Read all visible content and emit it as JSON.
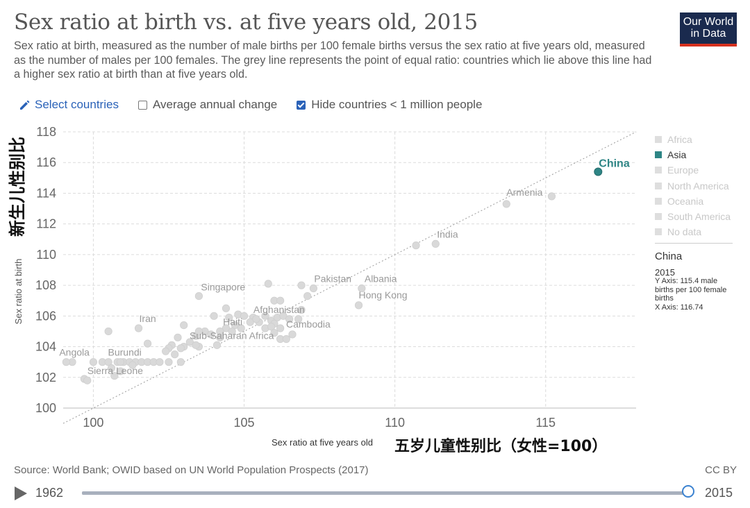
{
  "header": {
    "title": "Sex ratio at birth vs. at five years old, 2015",
    "subtitle": "Sex ratio at birth, measured as the number of male births per 100 female births versus the sex ratio at five years old, measured as the number of males per 100 females. The grey line represents the point of equal ratio: countries which lie above this line had a higher sex ratio at birth than at five years old.",
    "logo_line1": "Our World",
    "logo_line2": "in Data"
  },
  "controls": {
    "select_countries": "Select countries",
    "average_change": "Average annual change",
    "hide_small": "Hide countries < 1 million people",
    "average_change_checked": false,
    "hide_small_checked": true
  },
  "annotations": {
    "chinese_y": "新生儿性别比",
    "chinese_x": "五岁儿童性别比（女性=100）"
  },
  "legend": {
    "items": [
      "Africa",
      "Asia",
      "Europe",
      "North America",
      "Oceania",
      "South America",
      "No data"
    ],
    "active": "Asia"
  },
  "tooltip": {
    "country": "China",
    "year": "2015",
    "y_line": "Y Axis: 115.4 male births per 100 female births",
    "x_line": "X Axis: 116.74"
  },
  "footer": {
    "source": "Source: World Bank; OWID based on UN World Population Prospects (2017)",
    "license": "CC BY"
  },
  "timeline": {
    "start": "1962",
    "end": "2015"
  },
  "colors": {
    "highlight": "#2e8585",
    "point": "#d9d9d9",
    "link": "#2a62b8"
  },
  "chart_data": {
    "type": "scatter",
    "title": "Sex ratio at birth vs. at five years old, 2015",
    "xlabel": "Sex ratio at five years old",
    "ylabel": "Sex ratio at birth",
    "xlim": [
      99,
      118
    ],
    "ylim": [
      100,
      118
    ],
    "xticks": [
      100,
      105,
      110,
      115
    ],
    "yticks": [
      100,
      102,
      104,
      106,
      108,
      110,
      112,
      114,
      116,
      118
    ],
    "grid": true,
    "equal_line": true,
    "highlight": {
      "name": "China",
      "x": 116.74,
      "y": 115.4
    },
    "labeled_points": [
      {
        "name": "Armenia",
        "x": 113.7,
        "y": 113.3
      },
      {
        "name": "India",
        "x": 111.35,
        "y": 110.7
      },
      {
        "name": "Pakistan",
        "x": 107.3,
        "y": 107.8
      },
      {
        "name": "Albania",
        "x": 108.9,
        "y": 107.8
      },
      {
        "name": "Singapore",
        "x": 103.5,
        "y": 107.3
      },
      {
        "name": "Hong Kong",
        "x": 108.8,
        "y": 106.7
      },
      {
        "name": "Afghanistan",
        "x": 105.4,
        "y": 105.8
      },
      {
        "name": "Iran",
        "x": 101.5,
        "y": 105.2
      },
      {
        "name": "Haiti",
        "x": 104.6,
        "y": 105.0
      },
      {
        "name": "Cambodia",
        "x": 106.6,
        "y": 104.8
      },
      {
        "name": "Sub-Saharan Africa",
        "x": 103.4,
        "y": 104.1
      },
      {
        "name": "Burundi",
        "x": 100.9,
        "y": 103.0
      },
      {
        "name": "Angola",
        "x": 99.1,
        "y": 103.0
      },
      {
        "name": "Sierra Leone",
        "x": 99.8,
        "y": 101.8
      }
    ],
    "points": [
      [
        115.2,
        113.8
      ],
      [
        110.7,
        110.6
      ],
      [
        106.9,
        108.0
      ],
      [
        105.8,
        108.1
      ],
      [
        107.1,
        107.3
      ],
      [
        106.0,
        107.0
      ],
      [
        106.2,
        107.0
      ],
      [
        106.9,
        106.4
      ],
      [
        104.4,
        106.5
      ],
      [
        104.0,
        106.0
      ],
      [
        104.5,
        105.9
      ],
      [
        104.8,
        106.1
      ],
      [
        105.0,
        106.0
      ],
      [
        105.3,
        105.9
      ],
      [
        105.5,
        105.6
      ],
      [
        105.7,
        106.0
      ],
      [
        105.9,
        105.7
      ],
      [
        106.1,
        105.9
      ],
      [
        106.3,
        106.0
      ],
      [
        106.5,
        105.8
      ],
      [
        106.8,
        105.8
      ],
      [
        106.0,
        105.5
      ],
      [
        105.7,
        105.2
      ],
      [
        105.9,
        105.3
      ],
      [
        106.2,
        105.2
      ],
      [
        106.0,
        104.9
      ],
      [
        104.7,
        105.4
      ],
      [
        104.9,
        105.2
      ],
      [
        105.2,
        105.6
      ],
      [
        104.4,
        105.2
      ],
      [
        104.2,
        105.0
      ],
      [
        103.7,
        105.0
      ],
      [
        103.9,
        104.8
      ],
      [
        103.4,
        104.7
      ],
      [
        103.0,
        105.4
      ],
      [
        102.8,
        104.6
      ],
      [
        103.2,
        104.3
      ],
      [
        102.6,
        104.1
      ],
      [
        102.5,
        103.9
      ],
      [
        103.0,
        104.0
      ],
      [
        103.5,
        104.0
      ],
      [
        104.1,
        104.1
      ],
      [
        102.4,
        103.7
      ],
      [
        102.7,
        103.5
      ],
      [
        102.9,
        103.9
      ],
      [
        106.2,
        104.5
      ],
      [
        106.4,
        104.5
      ],
      [
        103.5,
        105.0
      ],
      [
        104.2,
        104.6
      ],
      [
        100.5,
        105.0
      ],
      [
        101.8,
        104.2
      ],
      [
        100.0,
        103.0
      ],
      [
        100.3,
        103.0
      ],
      [
        100.5,
        103.0
      ],
      [
        100.8,
        103.0
      ],
      [
        101.0,
        103.0
      ],
      [
        101.2,
        103.0
      ],
      [
        101.4,
        103.0
      ],
      [
        101.6,
        103.0
      ],
      [
        101.8,
        103.0
      ],
      [
        102.0,
        103.0
      ],
      [
        102.5,
        103.0
      ],
      [
        102.9,
        103.0
      ],
      [
        99.3,
        103.0
      ],
      [
        99.7,
        101.9
      ],
      [
        100.7,
        102.1
      ],
      [
        100.9,
        102.4
      ],
      [
        102.2,
        103.0
      ],
      [
        101.3,
        102.8
      ],
      [
        100.6,
        102.6
      ]
    ]
  }
}
